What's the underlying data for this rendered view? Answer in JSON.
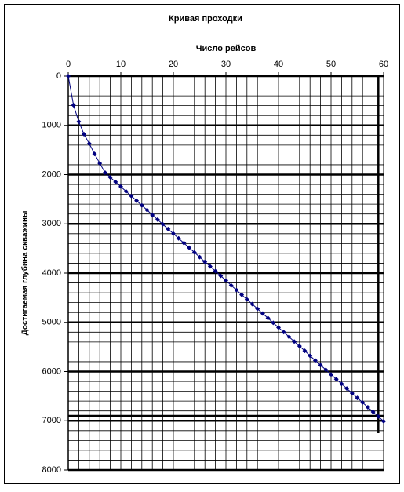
{
  "chart_data": {
    "type": "line",
    "title": "Кривая проходки",
    "x_label": "Число рейсов",
    "y_label": "Достигаемая глубина скважины",
    "x": [
      0,
      1,
      2,
      3,
      4,
      5,
      6,
      7,
      8,
      9,
      10,
      11,
      12,
      13,
      14,
      15,
      16,
      17,
      18,
      19,
      20,
      21,
      22,
      23,
      24,
      25,
      26,
      27,
      28,
      29,
      30,
      31,
      32,
      33,
      34,
      35,
      36,
      37,
      38,
      39,
      40,
      41,
      42,
      43,
      44,
      45,
      46,
      47,
      48,
      49,
      50,
      51,
      52,
      53,
      54,
      55,
      56,
      57,
      58,
      59,
      60
    ],
    "series": [
      {
        "color": "#000080",
        "values": [
          0,
          590,
          925,
          1180,
          1370,
          1580,
          1770,
          1960,
          2055,
          2150,
          2245,
          2340,
          2435,
          2530,
          2625,
          2720,
          2820,
          2915,
          3010,
          3105,
          3200,
          3295,
          3390,
          3485,
          3580,
          3675,
          3770,
          3865,
          3960,
          4055,
          4150,
          4250,
          4345,
          4440,
          4535,
          4630,
          4725,
          4820,
          4915,
          5010,
          5105,
          5200,
          5295,
          5390,
          5485,
          5580,
          5680,
          5775,
          5870,
          5965,
          6060,
          6155,
          6250,
          6345,
          6440,
          6535,
          6630,
          6725,
          6820,
          6915,
          7010
        ]
      }
    ],
    "xlim": [
      0,
      60
    ],
    "xticks": [
      0,
      10,
      20,
      30,
      40,
      50,
      60
    ],
    "ylim": [
      0,
      8000
    ],
    "yticks": [
      0,
      1000,
      2000,
      3000,
      4000,
      5000,
      6000,
      7000,
      8000
    ],
    "y_reversed": true,
    "x_axis_top": true,
    "grid": true,
    "minor_grid": {
      "x": 2,
      "y": 200
    },
    "reference_lines": [
      {
        "y": 6900
      },
      {
        "x": 59,
        "y_end": 7250
      }
    ]
  }
}
